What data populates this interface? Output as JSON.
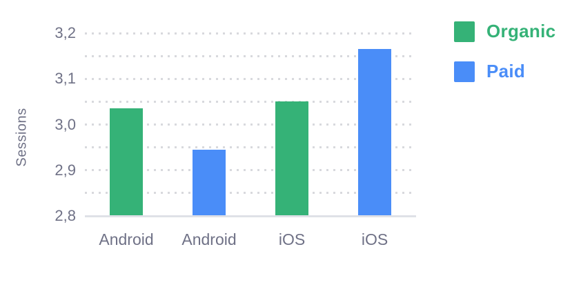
{
  "colors": {
    "background": "#ffffff",
    "organic_green": "#35b277",
    "paid_blue": "#4a8df8",
    "axis_text": "#6f7186",
    "grid_dots": "#d8d9dd",
    "axis_line": "#dfe1e7"
  },
  "chart_data": {
    "type": "bar",
    "title": "",
    "xlabel": "",
    "ylabel": "Sessions",
    "ylim": [
      2.8,
      3.2
    ],
    "grid": "horizontal dotted lines every 0.05; solid baseline at 2.8; no vertical axis line",
    "grid_interval": 0.05,
    "decimal_separator": ",",
    "y_tick_values": [
      3.2,
      3.1,
      3.0,
      2.9,
      2.8
    ],
    "y_tick_labels": [
      "3,2",
      "3,1",
      "3,0",
      "2,9",
      "2,8"
    ],
    "categories": [
      "Android",
      "Android",
      "iOS",
      "iOS"
    ],
    "legend_position": "top-right",
    "legend": [
      {
        "name": "Organic",
        "color": "#35b277"
      },
      {
        "name": "Paid",
        "color": "#4a8df8"
      }
    ],
    "bars": [
      {
        "category": "Android",
        "series": "Organic",
        "value": 3.035
      },
      {
        "category": "Android",
        "series": "Paid",
        "value": 2.945
      },
      {
        "category": "iOS",
        "series": "Organic",
        "value": 3.05
      },
      {
        "category": "iOS",
        "series": "Paid",
        "value": 3.165
      }
    ]
  }
}
